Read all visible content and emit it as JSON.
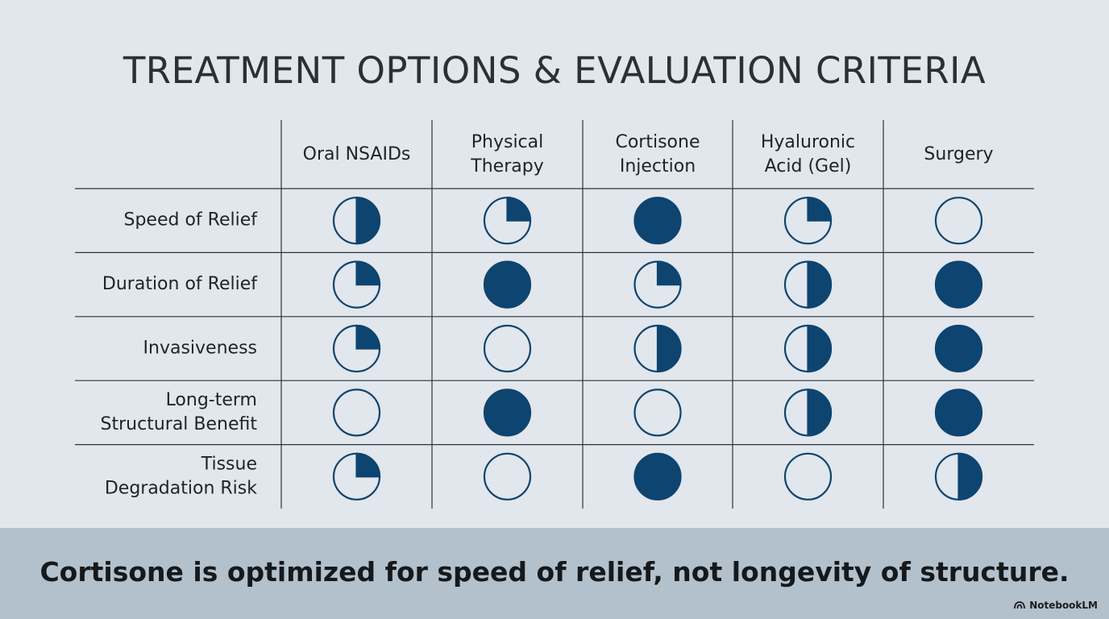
{
  "title": "TREATMENT OPTIONS & EVALUATION CRITERIA",
  "chart_data": {
    "type": "table",
    "encoding": "Harvey balls (filled fraction: 0, 0.25, 0.5, 1)",
    "columns": [
      [
        "Oral NSAIDs"
      ],
      [
        "Physical",
        "Therapy"
      ],
      [
        "Cortisone",
        "Injection"
      ],
      [
        "Hyaluronic",
        "Acid (Gel)"
      ],
      [
        "Surgery"
      ]
    ],
    "rows": [
      {
        "label": [
          "Speed of Relief"
        ],
        "values": [
          0.5,
          0.25,
          1,
          0.25,
          0
        ]
      },
      {
        "label": [
          "Duration of Relief"
        ],
        "values": [
          0.25,
          1,
          0.25,
          0.5,
          1
        ]
      },
      {
        "label": [
          "Invasiveness"
        ],
        "values": [
          0.25,
          0,
          0.5,
          0.5,
          1
        ]
      },
      {
        "label": [
          "Long-term",
          "Structural Benefit"
        ],
        "values": [
          0,
          1,
          0,
          0.5,
          1
        ]
      },
      {
        "label": [
          "Tissue",
          "Degradation Risk"
        ],
        "values": [
          0.25,
          0,
          1,
          0,
          0.5
        ]
      }
    ]
  },
  "colors": {
    "fill": "#0e4470",
    "stroke": "#0e4470",
    "empty": "#e1e7ec",
    "grid": "#2f3438"
  },
  "footer": {
    "takeaway": "Cortisone is optimized for speed of relief, not longevity of structure.",
    "brand": "NotebookLM",
    "brand_icon": "notebooklm-logo-icon"
  }
}
